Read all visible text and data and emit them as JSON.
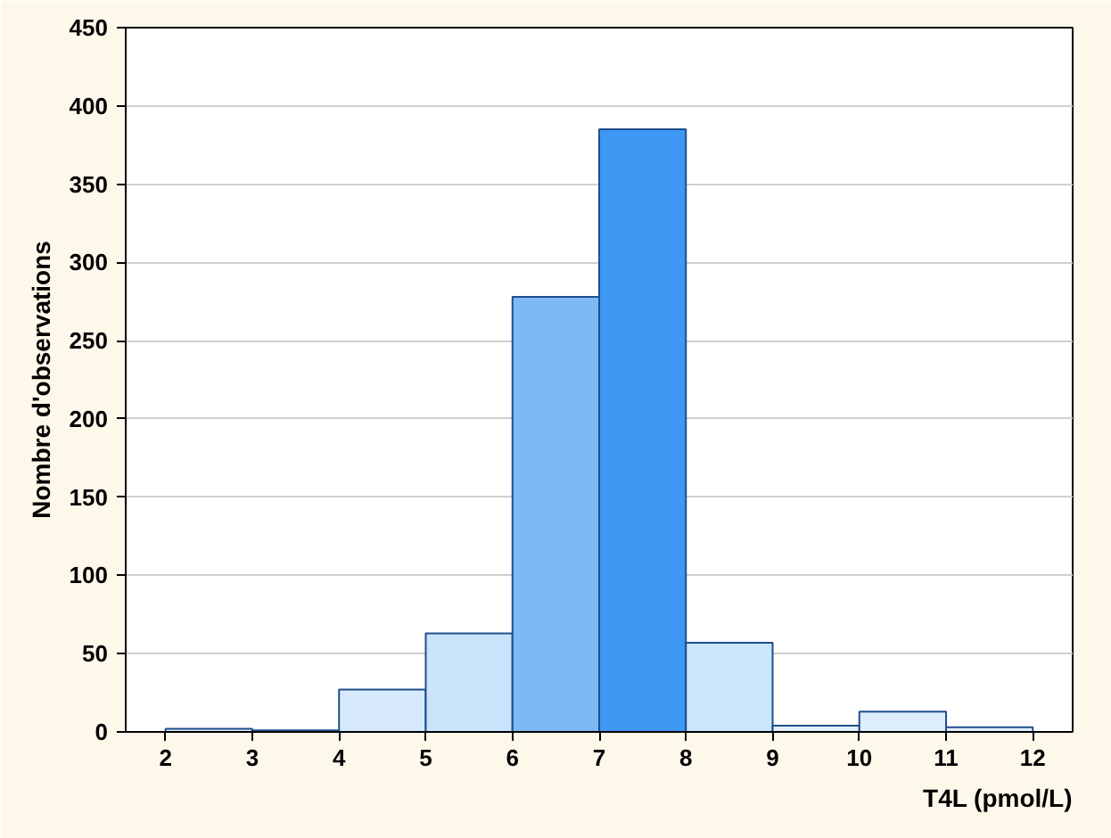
{
  "chart_data": {
    "type": "histogram",
    "xlabel": "T4L (pmol/L)",
    "ylabel": "Nombre d'observations",
    "bins": [
      2,
      3,
      4,
      5,
      6,
      7,
      8,
      9,
      10,
      11,
      12
    ],
    "values": [
      2,
      1,
      27,
      63,
      278,
      385,
      57,
      4,
      13,
      3
    ],
    "colors": [
      "#e2f0fd",
      "#e2f0fd",
      "#d6eafc",
      "#c9e3fb",
      "#7dbaf5",
      "#3d97f3",
      "#cde5fb",
      "#e2f0fd",
      "#dcedfc",
      "#e2f0fd"
    ],
    "xlim": [
      1.54,
      12.46
    ],
    "ylim": [
      0,
      450
    ],
    "xticks": [
      2,
      3,
      4,
      5,
      6,
      7,
      8,
      9,
      10,
      11,
      12
    ],
    "yticks": [
      0,
      50,
      100,
      150,
      200,
      250,
      300,
      350,
      400,
      450
    ],
    "grid": "y"
  }
}
